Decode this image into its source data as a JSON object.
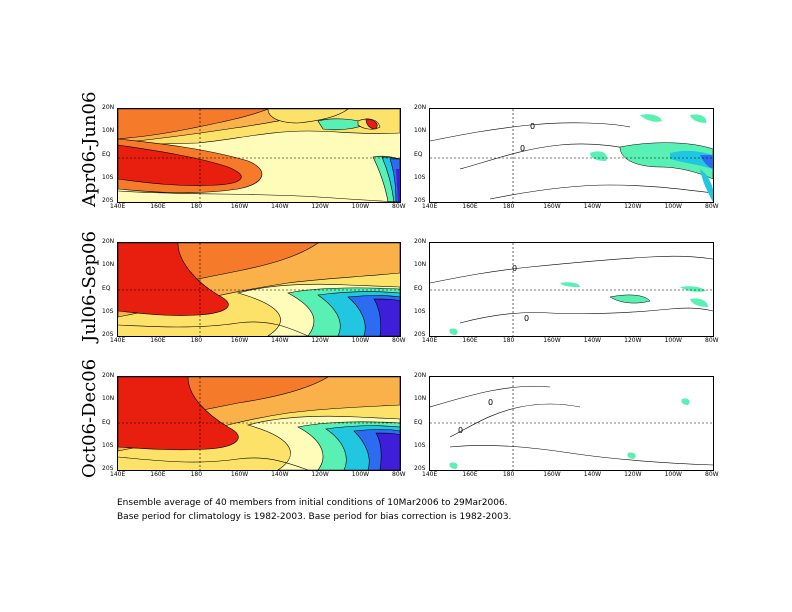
{
  "rows": [
    {
      "label": "Apr06-Jun06"
    },
    {
      "label": "Jul06-Sep06"
    },
    {
      "label": "Oct06-Dec06"
    }
  ],
  "axes": {
    "lon_ticks": [
      "140E",
      "160E",
      "180",
      "160W",
      "140W",
      "120W",
      "100W",
      "80W"
    ],
    "lat_ticks": [
      "20N",
      "10N",
      "EQ",
      "10S",
      "20S"
    ]
  },
  "contour_labels": [
    "0",
    "0",
    "0",
    "0",
    "0",
    "0"
  ],
  "colors": {
    "red": "#e81e0e",
    "orange": "#f57a2a",
    "light_orange": "#fbb14a",
    "yellow": "#fde26a",
    "pale_yellow": "#fefcb8",
    "mint": "#59f0b4",
    "cyan": "#21c7e0",
    "blue": "#2b6cf0",
    "indigo": "#3e1ed8"
  },
  "caption": {
    "line1": "Ensemble average of 40 members from initial conditions of 10Mar2006 to 29Mar2006.",
    "line2": "Base period for climatology is 1982-2003. Base period for bias correction is 1982-2003."
  }
}
